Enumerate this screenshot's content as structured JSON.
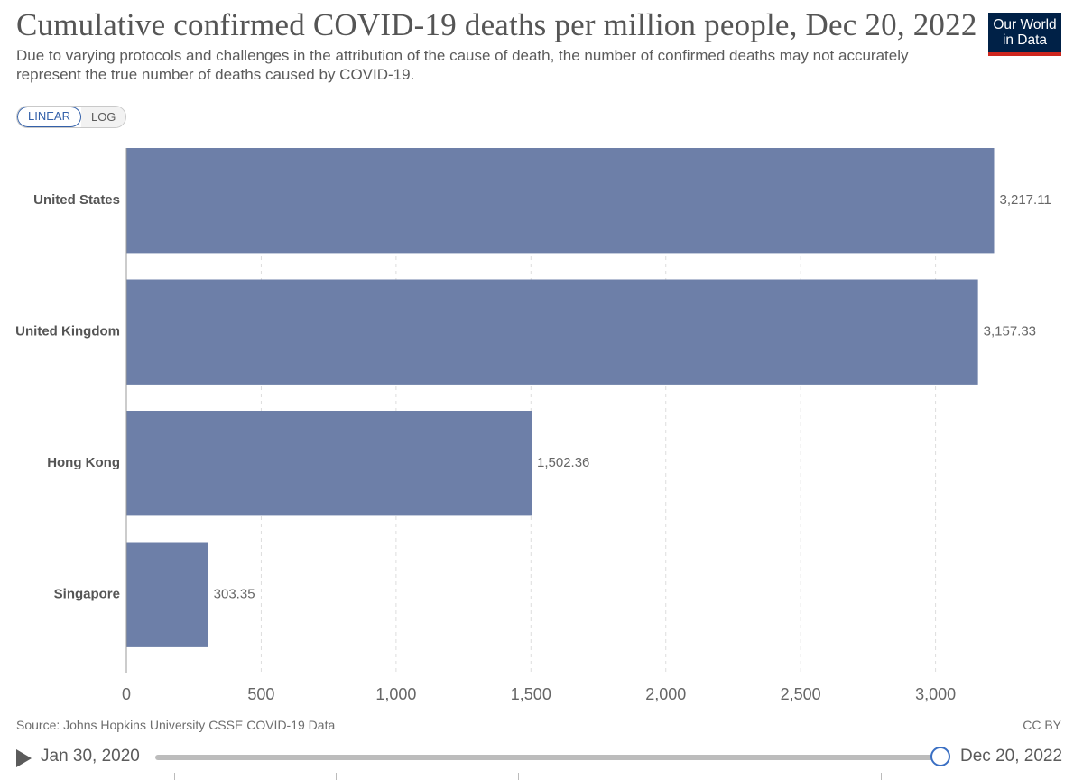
{
  "header": {
    "title": "Cumulative confirmed COVID-19 deaths per million people, Dec 20, 2022",
    "subtitle": "Due to varying protocols and challenges in the attribution of the cause of death, the number of confirmed deaths may not accurately represent the true number of deaths caused by COVID-19.",
    "logo_line1": "Our World",
    "logo_line2": "in Data"
  },
  "controls": {
    "linear_label": "LINEAR",
    "log_label": "LOG",
    "active_scale": "linear"
  },
  "chart_data": {
    "type": "bar",
    "orientation": "horizontal",
    "categories": [
      "United States",
      "United Kingdom",
      "Hong Kong",
      "Singapore"
    ],
    "values": [
      3217.11,
      3157.33,
      1502.36,
      303.35
    ],
    "value_labels": [
      "3,217.11",
      "3,157.33",
      "1,502.36",
      "303.35"
    ],
    "xticks": [
      0,
      500,
      1000,
      1500,
      2000,
      2500,
      3000
    ],
    "xtick_labels": [
      "0",
      "500",
      "1,000",
      "1,500",
      "2,000",
      "2,500",
      "3,000"
    ],
    "xlim": [
      0,
      3217.11
    ],
    "grid": true,
    "bar_color": "#6d7fa8"
  },
  "footer": {
    "source": "Source: Johns Hopkins University CSSE COVID-19 Data",
    "license": "CC BY"
  },
  "timeline": {
    "start_label": "Jan 30, 2020",
    "end_label": "Dec 20, 2022"
  },
  "colors": {
    "accent": "#3360a9",
    "logo_bg": "#002147",
    "logo_stripe": "#ce261e"
  }
}
